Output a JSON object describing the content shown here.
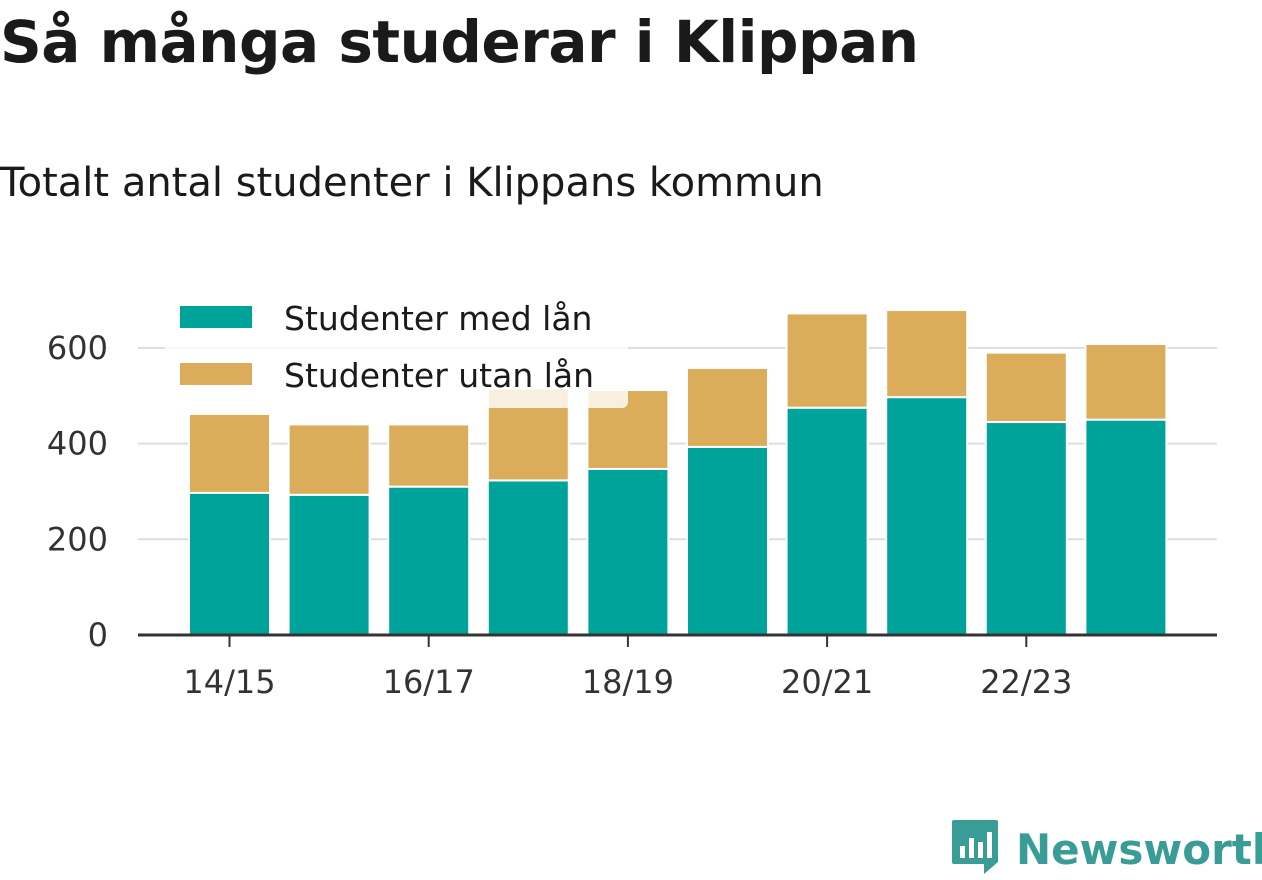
{
  "header": {
    "title": "Så många studerar i Klippan",
    "subtitle": "Totalt antal studenter i Klippans kommun"
  },
  "brand": {
    "name": "Newsworthy",
    "color": "#3a9c96",
    "icon": "bar-chart-icon"
  },
  "colors": {
    "with_loan": "#00a39a",
    "without_loan": "#dbad5b",
    "grid": "#dddddd",
    "axis": "#333333"
  },
  "chart_data": {
    "type": "bar",
    "stacked": true,
    "categories": [
      "14/15",
      "15/16",
      "16/17",
      "17/18",
      "18/19",
      "19/20",
      "20/21",
      "21/22",
      "22/23",
      "23/24"
    ],
    "x_tick_labels": [
      "14/15",
      "16/17",
      "18/19",
      "20/21",
      "22/23"
    ],
    "series": [
      {
        "name": "Studenter med lån",
        "values": [
          297,
          293,
          310,
          323,
          347,
          393,
          475,
          497,
          445,
          450
        ]
      },
      {
        "name": "Studenter utan lån",
        "values": [
          165,
          147,
          130,
          192,
          165,
          165,
          197,
          182,
          145,
          158
        ]
      }
    ],
    "ylim": [
      0,
      700
    ],
    "y_ticks": [
      0,
      200,
      400,
      600
    ],
    "grid": true,
    "legend": "top-left"
  }
}
